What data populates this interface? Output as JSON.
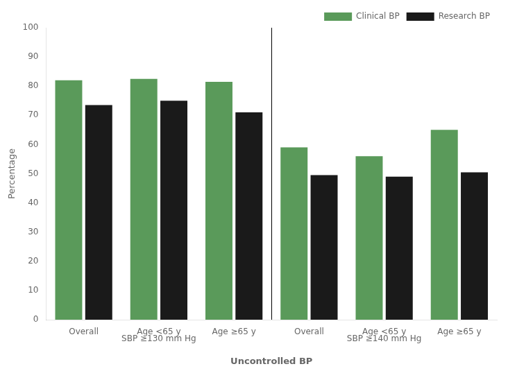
{
  "chart_data": {
    "type": "bar",
    "categories": [
      "Overall",
      "Age <65 y",
      "Age ≥65 y",
      "Overall",
      "Age <65 y",
      "Age ≥65 y"
    ],
    "group_labels": [
      "SBP ≥130 mm Hg",
      "SBP ≥140 mm Hg"
    ],
    "series": [
      {
        "name": "Clinical BP",
        "color": "#5a9a5a",
        "values": [
          82,
          82.5,
          81.5,
          59,
          56,
          65
        ]
      },
      {
        "name": "Research BP",
        "color": "#1a1a1a",
        "values": [
          73.5,
          75,
          71,
          49.5,
          49,
          50.5
        ]
      }
    ],
    "xlabel": "Uncontrolled BP",
    "ylabel": "Percentage",
    "ylim": [
      0,
      100
    ],
    "yticks": [
      0,
      10,
      20,
      30,
      40,
      50,
      60,
      70,
      80,
      90,
      100
    ],
    "grid": false,
    "legend": "upper right"
  }
}
